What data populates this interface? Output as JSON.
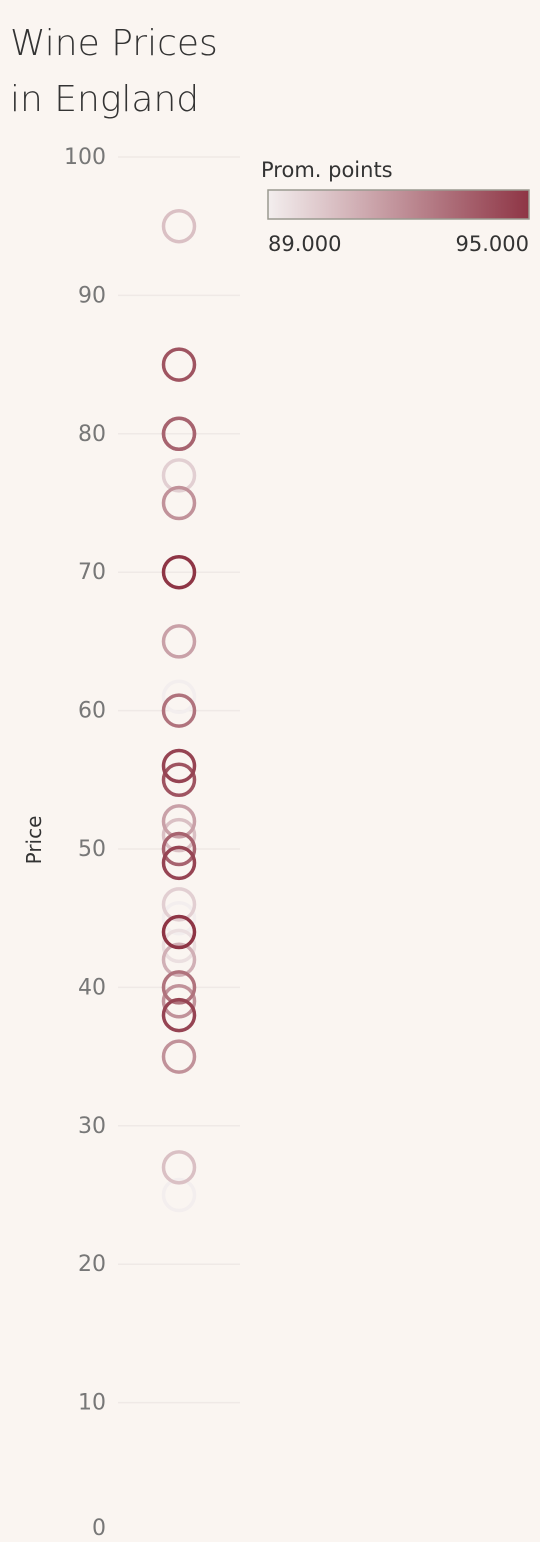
{
  "chart_data": {
    "type": "scatter",
    "title": [
      "Wine Prices",
      "in England"
    ],
    "ylabel": "Price",
    "ylim": [
      0,
      100
    ],
    "yticks": [
      0,
      10,
      20,
      30,
      40,
      50,
      60,
      70,
      80,
      90,
      100
    ],
    "grid": true,
    "legend": {
      "title": "Prom. points",
      "placement": "top-right",
      "min_label": "89.000",
      "max_label": "95.000",
      "min": 89,
      "max": 95
    },
    "colors": {
      "low": "#f3eeee",
      "high": "#8e3545",
      "background": "#faf5f1"
    },
    "points": [
      {
        "price": 95,
        "points": 90.5
      },
      {
        "price": 85,
        "points": 94.0
      },
      {
        "price": 80,
        "points": 93.5
      },
      {
        "price": 80,
        "points": 92.5
      },
      {
        "price": 77,
        "points": 90.0
      },
      {
        "price": 75,
        "points": 92.0
      },
      {
        "price": 70,
        "points": 95.0
      },
      {
        "price": 65,
        "points": 91.5
      },
      {
        "price": 61,
        "points": 89.0
      },
      {
        "price": 60,
        "points": 93.0
      },
      {
        "price": 56,
        "points": 94.5
      },
      {
        "price": 55,
        "points": 94.0
      },
      {
        "price": 52,
        "points": 91.5
      },
      {
        "price": 51,
        "points": 90.5
      },
      {
        "price": 50,
        "points": 93.5
      },
      {
        "price": 49,
        "points": 94.5
      },
      {
        "price": 46,
        "points": 90.0
      },
      {
        "price": 45,
        "points": 89.0
      },
      {
        "price": 44,
        "points": 95.0
      },
      {
        "price": 43,
        "points": 89.5
      },
      {
        "price": 42,
        "points": 91.0
      },
      {
        "price": 40,
        "points": 93.0
      },
      {
        "price": 39,
        "points": 92.0
      },
      {
        "price": 38,
        "points": 94.5
      },
      {
        "price": 35,
        "points": 92.0
      },
      {
        "price": 27,
        "points": 90.5
      },
      {
        "price": 25,
        "points": 89.0
      }
    ]
  }
}
